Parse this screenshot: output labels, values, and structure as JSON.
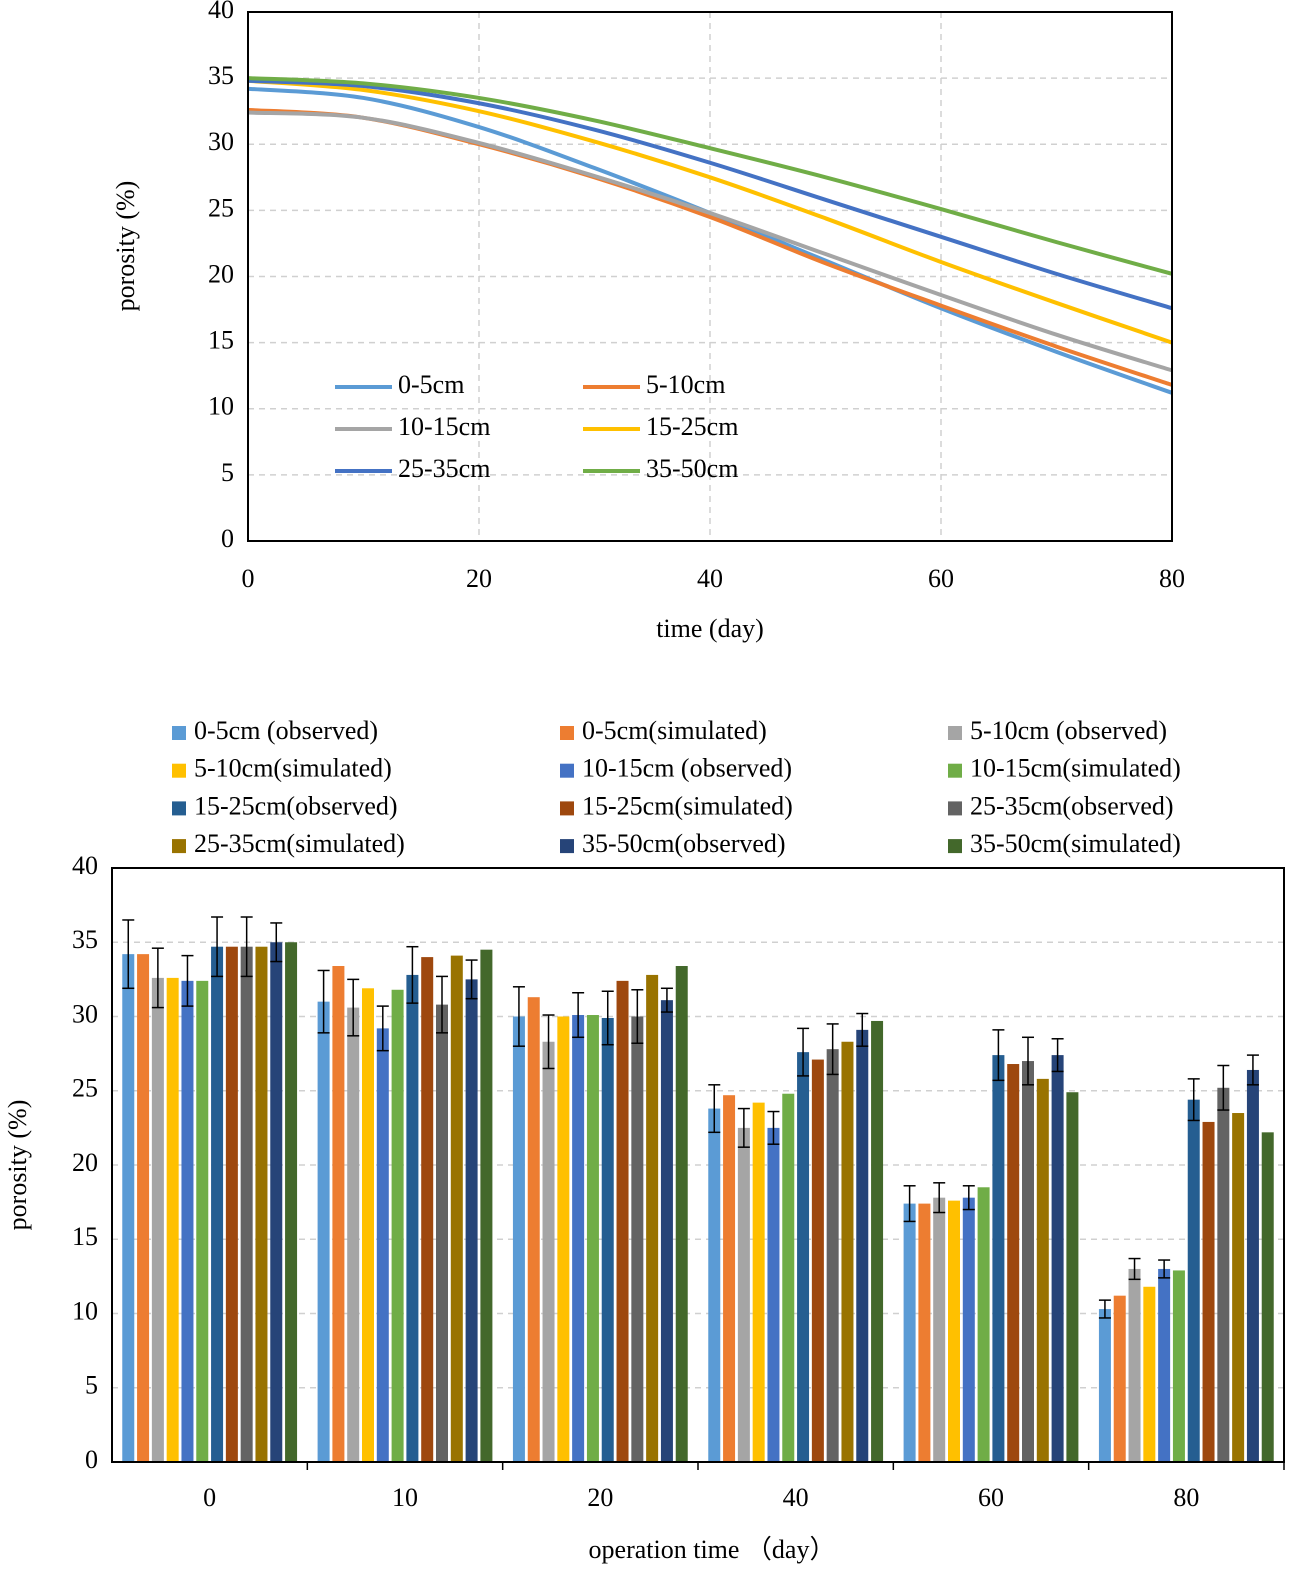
{
  "chart_data": [
    {
      "type": "line",
      "x_label": "time (day)",
      "y_label": "porosity (%)",
      "x": [
        0,
        10,
        20,
        30,
        40,
        50,
        60,
        70,
        80
      ],
      "xlim": [
        0,
        80
      ],
      "xticks": [
        0,
        20,
        40,
        60,
        80
      ],
      "ylim": [
        0,
        40
      ],
      "yticks": [
        0,
        5,
        10,
        15,
        20,
        25,
        30,
        35,
        40
      ],
      "grid": "both",
      "legend_position": "lower left",
      "series": [
        {
          "name": "0-5cm",
          "color": "#5B9BD5",
          "values": [
            34.2,
            33.5,
            31.3,
            28.2,
            24.8,
            21.2,
            17.6,
            14.3,
            11.2
          ]
        },
        {
          "name": "5-10cm",
          "color": "#ED7D31",
          "values": [
            32.6,
            32.0,
            30.0,
            27.5,
            24.5,
            21.0,
            17.8,
            14.7,
            11.8
          ]
        },
        {
          "name": "10-15cm",
          "color": "#A5A5A5",
          "values": [
            32.4,
            32.0,
            30.1,
            27.6,
            24.8,
            21.7,
            18.6,
            15.6,
            12.9
          ]
        },
        {
          "name": "15-25cm",
          "color": "#FFC000",
          "values": [
            34.8,
            34.1,
            32.5,
            30.2,
            27.5,
            24.4,
            21.1,
            18.0,
            15.0
          ]
        },
        {
          "name": "25-35cm",
          "color": "#4472C4",
          "values": [
            34.8,
            34.4,
            33.1,
            31.1,
            28.6,
            25.8,
            23.0,
            20.2,
            17.6
          ]
        },
        {
          "name": "35-50cm",
          "color": "#70AD47",
          "values": [
            35.0,
            34.6,
            33.5,
            31.8,
            29.7,
            27.5,
            25.1,
            22.6,
            20.2
          ]
        }
      ]
    },
    {
      "type": "bar",
      "x_label": "operation time （day）",
      "y_label": "porosity (%)",
      "categories": [
        "0",
        "10",
        "20",
        "40",
        "60",
        "80"
      ],
      "ylim": [
        0,
        40
      ],
      "yticks": [
        0,
        5,
        10,
        15,
        20,
        25,
        30,
        35,
        40
      ],
      "grid": "y",
      "legend_position": "top",
      "series": [
        {
          "name": "0-5cm (observed)",
          "color": "#5B9BD5",
          "values": [
            34.2,
            31.0,
            30.0,
            23.8,
            17.4,
            10.3
          ],
          "errors": [
            2.3,
            2.1,
            2.0,
            1.6,
            1.2,
            0.6
          ]
        },
        {
          "name": "0-5cm(simulated)",
          "color": "#ED7D31",
          "values": [
            34.2,
            33.4,
            31.3,
            24.7,
            17.4,
            11.2
          ]
        },
        {
          "name": "5-10cm (observed)",
          "color": "#A5A5A5",
          "values": [
            32.6,
            30.6,
            28.3,
            22.5,
            17.8,
            13.0
          ],
          "errors": [
            2.0,
            1.9,
            1.8,
            1.3,
            1.0,
            0.7
          ]
        },
        {
          "name": "5-10cm(simulated)",
          "color": "#FFC000",
          "values": [
            32.6,
            31.9,
            30.0,
            24.2,
            17.6,
            11.8
          ]
        },
        {
          "name": "10-15cm (observed)",
          "color": "#4472C4",
          "values": [
            32.4,
            29.2,
            30.1,
            22.5,
            17.8,
            13.0
          ],
          "errors": [
            1.7,
            1.5,
            1.5,
            1.1,
            0.8,
            0.6
          ]
        },
        {
          "name": "10-15cm(simulated)",
          "color": "#70AD47",
          "values": [
            32.4,
            31.8,
            30.1,
            24.8,
            18.5,
            12.9
          ]
        },
        {
          "name": "15-25cm(observed)",
          "color": "#255E91",
          "values": [
            34.7,
            32.8,
            29.9,
            27.6,
            27.4,
            24.4
          ],
          "errors": [
            2.0,
            1.9,
            1.8,
            1.6,
            1.7,
            1.4
          ]
        },
        {
          "name": "15-25cm(simulated)",
          "color": "#9E480E",
          "values": [
            34.7,
            34.0,
            32.4,
            27.1,
            26.8,
            22.9
          ]
        },
        {
          "name": "25-35cm(observed)",
          "color": "#636363",
          "values": [
            34.7,
            30.8,
            30.0,
            27.8,
            27.0,
            25.2
          ],
          "errors": [
            2.0,
            1.9,
            1.8,
            1.7,
            1.6,
            1.5
          ]
        },
        {
          "name": "25-35cm(simulated)",
          "color": "#997300",
          "values": [
            34.7,
            34.1,
            32.8,
            28.3,
            25.8,
            23.5
          ]
        },
        {
          "name": "35-50cm(observed)",
          "color": "#264478",
          "values": [
            35.0,
            32.5,
            31.1,
            29.1,
            27.4,
            26.4
          ],
          "errors": [
            1.3,
            1.3,
            0.8,
            1.1,
            1.1,
            1.0
          ]
        },
        {
          "name": "35-50cm(simulated)",
          "color": "#43682B",
          "values": [
            35.0,
            34.5,
            33.4,
            29.7,
            24.9,
            22.2
          ]
        }
      ]
    }
  ]
}
